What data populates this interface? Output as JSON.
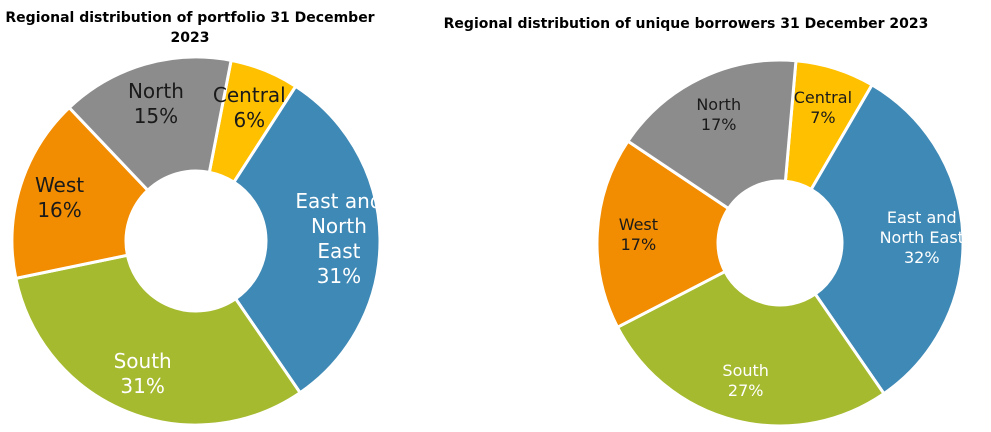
{
  "chart_data": [
    {
      "type": "donut",
      "title": "Regional distribution of portfolio 31 December 2023",
      "categories": [
        "Central",
        "East and North East",
        "South",
        "West",
        "North"
      ],
      "values": [
        6,
        31,
        31,
        16,
        15
      ],
      "value_labels": [
        "6%",
        "31%",
        "31%",
        "16%",
        "15%"
      ],
      "colors": [
        "#ffc000",
        "#3f89b6",
        "#a6ba2f",
        "#f28c00",
        "#8c8c8c"
      ]
    },
    {
      "type": "donut",
      "title": "Regional distribution of unique borrowers  31 December 2023",
      "categories": [
        "Central",
        "East and North East",
        "South",
        "West",
        "North"
      ],
      "values": [
        7,
        32,
        27,
        17,
        17
      ],
      "value_labels": [
        "7%",
        "32%",
        "27%",
        "17%",
        "17%"
      ],
      "colors": [
        "#ffc000",
        "#3f89b6",
        "#a6ba2f",
        "#f28c00",
        "#8c8c8c"
      ]
    }
  ]
}
